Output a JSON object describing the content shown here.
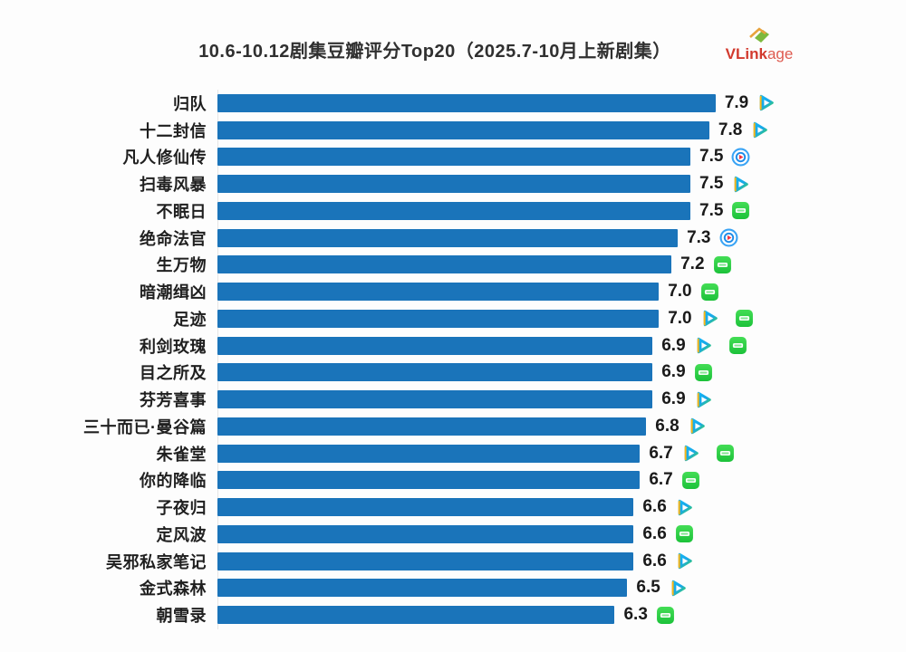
{
  "title": "10.6-10.12剧集豆瓣评分Top20（2025.7-10月上新剧集）",
  "logo": {
    "text_bold": "VLink",
    "text_light": "age",
    "color": "#d23a2e"
  },
  "chart_data": {
    "type": "bar",
    "orientation": "horizontal",
    "title": "10.6-10.12剧集豆瓣评分Top20（2025.7-10月上新剧集）",
    "xlabel": "",
    "ylabel": "",
    "xlim": [
      0,
      8
    ],
    "grid": false,
    "legend": "none",
    "bar_color": "#1a74ba",
    "categories": [
      "归队",
      "十二封信",
      "凡人修仙传",
      "扫毒风暴",
      "不眠日",
      "绝命法官",
      "生万物",
      "暗潮缉凶",
      "足迹",
      "利剑玫瑰",
      "目之所及",
      "芬芳喜事",
      "三十而已·曼谷篇",
      "朱雀堂",
      "你的降临",
      "子夜归",
      "定风波",
      "吴邪私家笔记",
      "金式森林",
      "朝雪录"
    ],
    "values": [
      7.9,
      7.8,
      7.5,
      7.5,
      7.5,
      7.3,
      7.2,
      7.0,
      7.0,
      6.9,
      6.9,
      6.9,
      6.8,
      6.7,
      6.7,
      6.6,
      6.6,
      6.6,
      6.5,
      6.3
    ]
  },
  "rows": [
    {
      "name": "归队",
      "value": "7.9",
      "platforms": [
        "tencent-video"
      ]
    },
    {
      "name": "十二封信",
      "value": "7.8",
      "platforms": [
        "tencent-video"
      ]
    },
    {
      "name": "凡人修仙传",
      "value": "7.5",
      "platforms": [
        "youku"
      ]
    },
    {
      "name": "扫毒风暴",
      "value": "7.5",
      "platforms": [
        "tencent-video"
      ]
    },
    {
      "name": "不眠日",
      "value": "7.5",
      "platforms": [
        "iqiyi"
      ]
    },
    {
      "name": "绝命法官",
      "value": "7.3",
      "platforms": [
        "youku"
      ]
    },
    {
      "name": "生万物",
      "value": "7.2",
      "platforms": [
        "iqiyi"
      ]
    },
    {
      "name": "暗潮缉凶",
      "value": "7.0",
      "platforms": [
        "iqiyi"
      ]
    },
    {
      "name": "足迹",
      "value": "7.0",
      "platforms": [
        "tencent-video",
        "iqiyi"
      ]
    },
    {
      "name": "利剑玫瑰",
      "value": "6.9",
      "platforms": [
        "tencent-video",
        "iqiyi"
      ]
    },
    {
      "name": "目之所及",
      "value": "6.9",
      "platforms": [
        "iqiyi"
      ]
    },
    {
      "name": "芬芳喜事",
      "value": "6.9",
      "platforms": [
        "tencent-video"
      ]
    },
    {
      "name": "三十而已·曼谷篇",
      "value": "6.8",
      "platforms": [
        "tencent-video"
      ]
    },
    {
      "name": "朱雀堂",
      "value": "6.7",
      "platforms": [
        "tencent-video",
        "iqiyi"
      ]
    },
    {
      "name": "你的降临",
      "value": "6.7",
      "platforms": [
        "iqiyi"
      ]
    },
    {
      "name": "子夜归",
      "value": "6.6",
      "platforms": [
        "tencent-video"
      ]
    },
    {
      "name": "定风波",
      "value": "6.6",
      "platforms": [
        "iqiyi"
      ]
    },
    {
      "name": "吴邪私家笔记",
      "value": "6.6",
      "platforms": [
        "tencent-video"
      ]
    },
    {
      "name": "金式森林",
      "value": "6.5",
      "platforms": [
        "tencent-video"
      ]
    },
    {
      "name": "朝雪录",
      "value": "6.3",
      "platforms": [
        "iqiyi"
      ]
    }
  ],
  "colors": {
    "bar": "#1a74ba",
    "axis_line": "#e6e6e6",
    "title_text": "#303030",
    "label_text": "#1f1f1f",
    "value_text": "#1a1a1a",
    "tencent_blue": "#12b7f5",
    "tencent_green": "#3fd64a",
    "tencent_orange": "#ffb612",
    "youku_blue": "#3aa4f5",
    "youku_red": "#f5333f",
    "iqiyi_green": "#2bd245"
  }
}
